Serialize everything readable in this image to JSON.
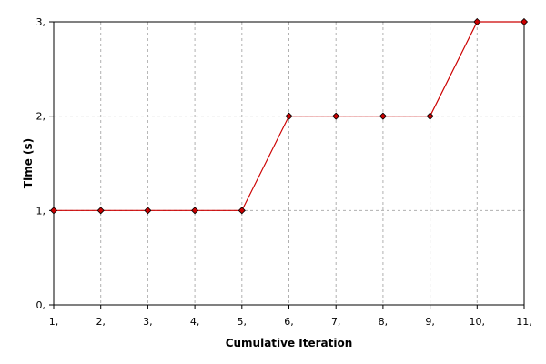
{
  "chart_data": {
    "type": "line",
    "title": "",
    "xlabel": "Cumulative Iteration",
    "ylabel": "Time (s)",
    "x": [
      1,
      2,
      3,
      4,
      5,
      6,
      7,
      8,
      9,
      10,
      11
    ],
    "x_tick_labels": [
      "1,",
      "2,",
      "3,",
      "4,",
      "5,",
      "6,",
      "7,",
      "8,",
      "9,",
      "10,",
      "11,"
    ],
    "y_ticks": [
      0,
      1,
      2,
      3
    ],
    "y_tick_labels": [
      "0,",
      "1,",
      "2,",
      "3,"
    ],
    "xlim": [
      1,
      11
    ],
    "ylim": [
      0,
      3
    ],
    "grid": true,
    "legend": "none",
    "series": [
      {
        "values": [
          1,
          1,
          1,
          1,
          1,
          2,
          2,
          2,
          2,
          3,
          3
        ],
        "color": "#cc0000",
        "marker_color": "#cc0000",
        "marker_edge": "#000000"
      }
    ]
  }
}
